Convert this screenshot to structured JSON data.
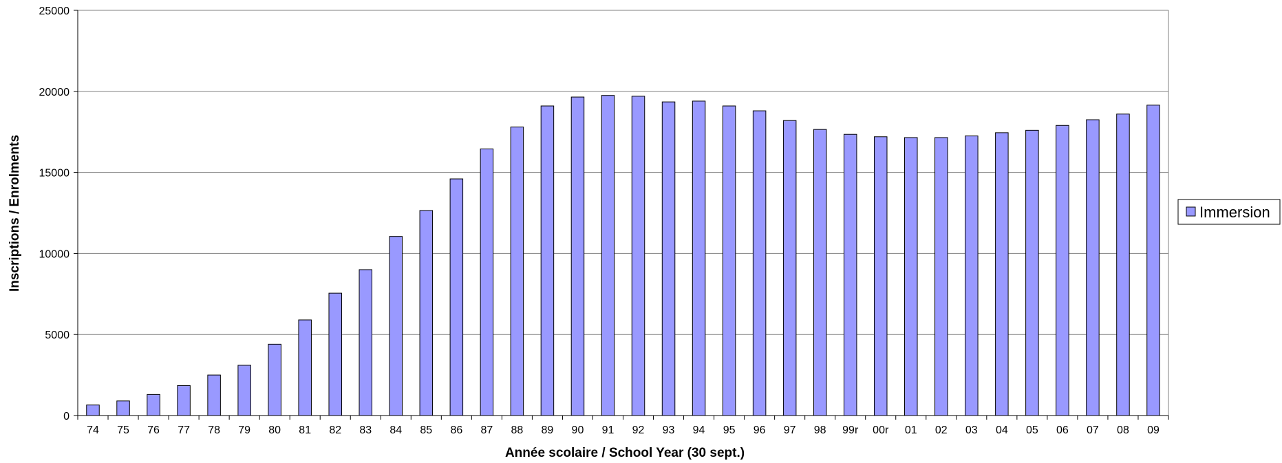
{
  "chart_data": {
    "type": "bar",
    "title": "",
    "xlabel": "Année scolaire / School Year (30 sept.)",
    "ylabel": "Inscriptions / Enrolments",
    "ylim": [
      0,
      25000
    ],
    "y_ticks": [
      "0",
      "5000",
      "10000",
      "15000",
      "20000",
      "25000"
    ],
    "grid": true,
    "legend_position": "right",
    "categories": [
      "74",
      "75",
      "76",
      "77",
      "78",
      "79",
      "80",
      "81",
      "82",
      "83",
      "84",
      "85",
      "86",
      "87",
      "88",
      "89",
      "90",
      "91",
      "92",
      "93",
      "94",
      "95",
      "96",
      "97",
      "98",
      "99r",
      "00r",
      "01",
      "02",
      "03",
      "04",
      "05",
      "06",
      "07",
      "08",
      "09"
    ],
    "series": [
      {
        "name": "Immersion",
        "color": "#9999ff",
        "values": [
          650,
          900,
          1300,
          1850,
          2500,
          3100,
          4400,
          5900,
          7550,
          9000,
          11050,
          12650,
          14600,
          16450,
          17800,
          19100,
          19650,
          19750,
          19700,
          19350,
          19400,
          19100,
          18800,
          18200,
          17650,
          17350,
          17200,
          17150,
          17150,
          17250,
          17450,
          17600,
          17900,
          18250,
          18600,
          19150
        ]
      }
    ]
  }
}
